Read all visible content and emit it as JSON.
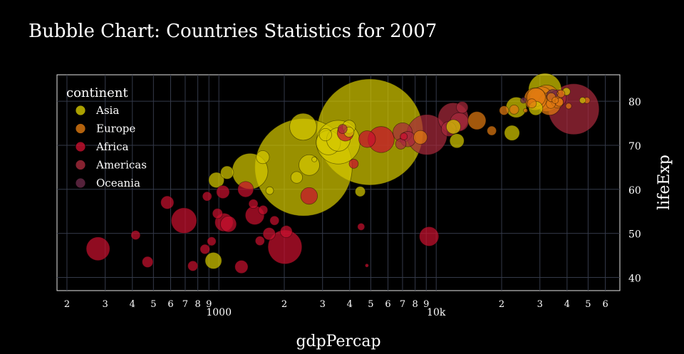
{
  "chart_data": {
    "type": "scatter",
    "title": "Bubble Chart: Countries Statistics for 2007",
    "xlabel": "gdpPercap",
    "ylabel": "lifeExp",
    "x_scale": "log",
    "xlim": [
      180,
      70000
    ],
    "ylim": [
      37,
      86
    ],
    "y_ticks": [
      40,
      50,
      60,
      70,
      80
    ],
    "x_major_ticks": [
      {
        "value": 1000,
        "label": "1000"
      },
      {
        "value": 10000,
        "label": "10k"
      }
    ],
    "x_minor_ticks": [
      {
        "value": 200,
        "label": "2"
      },
      {
        "value": 300,
        "label": "3"
      },
      {
        "value": 400,
        "label": "4"
      },
      {
        "value": 500,
        "label": "5"
      },
      {
        "value": 600,
        "label": "6"
      },
      {
        "value": 700,
        "label": "7"
      },
      {
        "value": 800,
        "label": "8"
      },
      {
        "value": 900,
        "label": "9"
      },
      {
        "value": 2000,
        "label": "2"
      },
      {
        "value": 3000,
        "label": "3"
      },
      {
        "value": 4000,
        "label": "4"
      },
      {
        "value": 5000,
        "label": "5"
      },
      {
        "value": 6000,
        "label": "6"
      },
      {
        "value": 7000,
        "label": "7"
      },
      {
        "value": 8000,
        "label": "8"
      },
      {
        "value": 9000,
        "label": "9"
      },
      {
        "value": 20000,
        "label": "2"
      },
      {
        "value": 30000,
        "label": "3"
      },
      {
        "value": 40000,
        "label": "4"
      },
      {
        "value": 50000,
        "label": "5"
      },
      {
        "value": 60000,
        "label": "6"
      }
    ],
    "grid": true,
    "legend": {
      "title": "continent",
      "position": "top-left"
    },
    "size_variable": "pop",
    "series": [
      {
        "name": "Asia",
        "color": "#d4c800",
        "points": [
          {
            "x": 2452,
            "y": 65.0,
            "pop": 1110
          },
          {
            "x": 4959,
            "y": 73.0,
            "pop": 1319
          },
          {
            "x": 2605,
            "y": 65.5,
            "pop": 50
          },
          {
            "x": 1391,
            "y": 64.1,
            "pop": 150
          },
          {
            "x": 3541,
            "y": 70.7,
            "pop": 223
          },
          {
            "x": 3190,
            "y": 70.6,
            "pop": 70
          },
          {
            "x": 31656,
            "y": 82.6,
            "pop": 127
          },
          {
            "x": 2442,
            "y": 74.2,
            "pop": 85
          },
          {
            "x": 3548,
            "y": 71.3,
            "pop": 65
          },
          {
            "x": 12451,
            "y": 71.0,
            "pop": 24
          },
          {
            "x": 974,
            "y": 62.1,
            "pop": 28
          },
          {
            "x": 1091,
            "y": 63.8,
            "pop": 20
          },
          {
            "x": 944,
            "y": 43.8,
            "pop": 32
          },
          {
            "x": 4471,
            "y": 59.5,
            "pop": 12
          },
          {
            "x": 2281,
            "y": 62.7,
            "pop": 16
          },
          {
            "x": 3095,
            "y": 72.4,
            "pop": 18
          },
          {
            "x": 1593,
            "y": 67.3,
            "pop": 20
          },
          {
            "x": 3970,
            "y": 74.2,
            "pop": 20
          },
          {
            "x": 23348,
            "y": 78.6,
            "pop": 49
          },
          {
            "x": 22316,
            "y": 72.8,
            "pop": 27
          },
          {
            "x": 28718,
            "y": 78.4,
            "pop": 23
          },
          {
            "x": 47143,
            "y": 80.2,
            "pop": 4.5
          },
          {
            "x": 39725,
            "y": 82.2,
            "pop": 7
          },
          {
            "x": 3970,
            "y": 73.0,
            "pop": 12
          },
          {
            "x": 1714,
            "y": 59.7,
            "pop": 7
          },
          {
            "x": 2749,
            "y": 66.8,
            "pop": 3
          },
          {
            "x": 12005,
            "y": 74.2,
            "pop": 24
          }
        ]
      },
      {
        "name": "Europe",
        "color": "#e07a10",
        "points": [
          {
            "x": 32170,
            "y": 80.7,
            "pop": 81
          },
          {
            "x": 30470,
            "y": 80.7,
            "pop": 61
          },
          {
            "x": 33203,
            "y": 79.4,
            "pop": 60
          },
          {
            "x": 28570,
            "y": 80.5,
            "pop": 59
          },
          {
            "x": 28821,
            "y": 80.9,
            "pop": 40
          },
          {
            "x": 15390,
            "y": 75.6,
            "pop": 38
          },
          {
            "x": 8458,
            "y": 71.8,
            "pop": 22
          },
          {
            "x": 36126,
            "y": 79.8,
            "pop": 16
          },
          {
            "x": 33692,
            "y": 79.4,
            "pop": 10
          },
          {
            "x": 22833,
            "y": 78.1,
            "pop": 10
          },
          {
            "x": 27538,
            "y": 79.5,
            "pop": 10
          },
          {
            "x": 20510,
            "y": 77.9,
            "pop": 10
          },
          {
            "x": 33860,
            "y": 80.9,
            "pop": 9
          },
          {
            "x": 36798,
            "y": 79.8,
            "pop": 8
          },
          {
            "x": 37506,
            "y": 81.7,
            "pop": 7
          },
          {
            "x": 18009,
            "y": 73.3,
            "pop": 10
          },
          {
            "x": 35278,
            "y": 80.2,
            "pop": 5
          },
          {
            "x": 40676,
            "y": 78.9,
            "pop": 4
          },
          {
            "x": 49357,
            "y": 80.2,
            "pop": 4.6
          },
          {
            "x": 25768,
            "y": 77.9,
            "pop": 2
          },
          {
            "x": 36181,
            "y": 81.8,
            "pop": 0.3
          }
        ]
      },
      {
        "name": "Africa",
        "color": "#c8102e",
        "points": [
          {
            "x": 2014,
            "y": 46.9,
            "pop": 135
          },
          {
            "x": 691,
            "y": 52.9,
            "pop": 76
          },
          {
            "x": 278,
            "y": 46.5,
            "pop": 65
          },
          {
            "x": 5581,
            "y": 71.3,
            "pop": 80
          },
          {
            "x": 9270,
            "y": 49.3,
            "pop": 44
          },
          {
            "x": 1463,
            "y": 54.1,
            "pop": 42
          },
          {
            "x": 1056,
            "y": 52.5,
            "pop": 39
          },
          {
            "x": 2602,
            "y": 58.5,
            "pop": 33
          },
          {
            "x": 4811,
            "y": 71.4,
            "pop": 33
          },
          {
            "x": 3820,
            "y": 72.8,
            "pop": 31
          },
          {
            "x": 1107,
            "y": 52.1,
            "pop": 30
          },
          {
            "x": 1328,
            "y": 60.0,
            "pop": 29
          },
          {
            "x": 1044,
            "y": 59.4,
            "pop": 20
          },
          {
            "x": 1704,
            "y": 49.9,
            "pop": 18
          },
          {
            "x": 1270,
            "y": 42.4,
            "pop": 20
          },
          {
            "x": 759,
            "y": 42.6,
            "pop": 12
          },
          {
            "x": 4797,
            "y": 42.7,
            "pop": 1.5
          },
          {
            "x": 579,
            "y": 57.0,
            "pop": 20
          },
          {
            "x": 1441,
            "y": 56.7,
            "pop": 10
          },
          {
            "x": 986,
            "y": 54.5,
            "pop": 12
          },
          {
            "x": 1598,
            "y": 55.3,
            "pop": 10
          },
          {
            "x": 883,
            "y": 58.4,
            "pop": 10
          },
          {
            "x": 414,
            "y": 49.6,
            "pop": 10
          },
          {
            "x": 470,
            "y": 43.5,
            "pop": 14
          },
          {
            "x": 2042,
            "y": 50.4,
            "pop": 17
          },
          {
            "x": 7093,
            "y": 72.0,
            "pop": 6
          },
          {
            "x": 4173,
            "y": 65.8,
            "pop": 10
          },
          {
            "x": 1545,
            "y": 48.3,
            "pop": 10
          },
          {
            "x": 863,
            "y": 46.4,
            "pop": 11
          },
          {
            "x": 926,
            "y": 48.2,
            "pop": 9
          },
          {
            "x": 1803,
            "y": 52.9,
            "pop": 10
          },
          {
            "x": 4513,
            "y": 51.5,
            "pop": 6
          }
        ]
      },
      {
        "name": "Americas",
        "color": "#a82a3c",
        "points": [
          {
            "x": 42952,
            "y": 78.2,
            "pop": 301
          },
          {
            "x": 9066,
            "y": 72.4,
            "pop": 190
          },
          {
            "x": 11978,
            "y": 76.2,
            "pop": 108
          },
          {
            "x": 7007,
            "y": 72.9,
            "pop": 44
          },
          {
            "x": 12779,
            "y": 75.3,
            "pop": 40
          },
          {
            "x": 36319,
            "y": 80.7,
            "pop": 33
          },
          {
            "x": 7409,
            "y": 71.4,
            "pop": 28
          },
          {
            "x": 11416,
            "y": 73.7,
            "pop": 26
          },
          {
            "x": 13172,
            "y": 78.6,
            "pop": 16
          },
          {
            "x": 6873,
            "y": 70.3,
            "pop": 13
          },
          {
            "x": 3708,
            "y": 73.7,
            "pop": 10
          }
        ]
      },
      {
        "name": "Oceania",
        "color": "#6a2a4a",
        "points": [
          {
            "x": 34435,
            "y": 81.2,
            "pop": 20
          },
          {
            "x": 25185,
            "y": 80.2,
            "pop": 4
          }
        ]
      }
    ]
  }
}
